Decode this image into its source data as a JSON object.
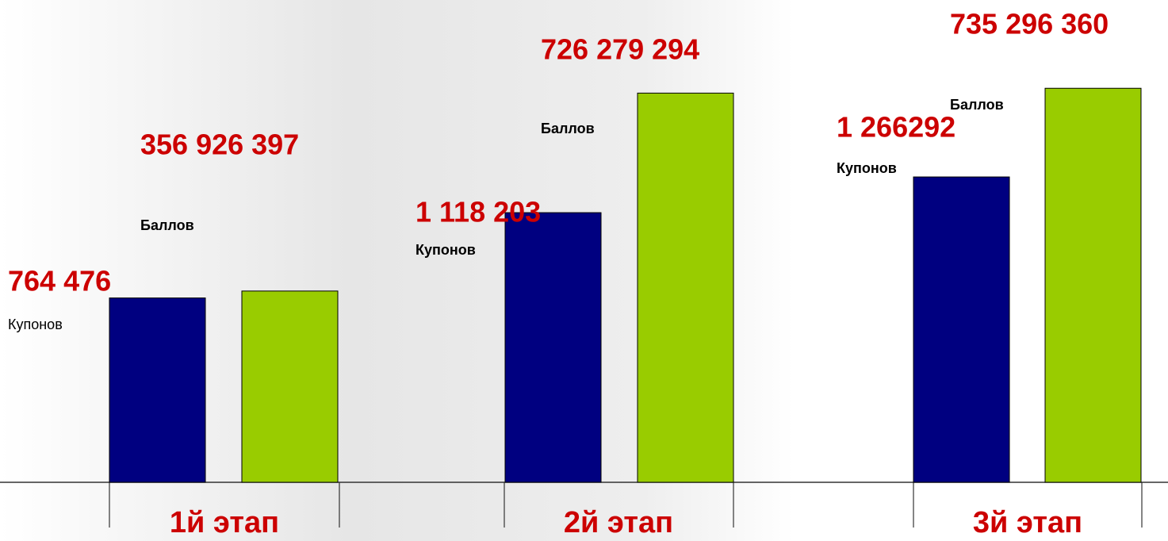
{
  "chart_data": {
    "type": "bar",
    "categories": [
      "1й этап",
      "2й этап",
      "3й этап"
    ],
    "series": [
      {
        "name": "Купонов",
        "color": "#000080",
        "values": [
          764476,
          1118203,
          1266292
        ],
        "value_labels": [
          "764 476",
          "1 118 203",
          "1 266292"
        ]
      },
      {
        "name": "Баллов",
        "color": "#99cc00",
        "axis": "y2",
        "values": [
          356926397,
          726279294,
          735296360
        ],
        "value_labels": [
          "356 926 397",
          "726 279 294",
          "735 296 360"
        ]
      }
    ],
    "ylim": [
      0,
      2000000
    ],
    "y2lim": [
      0,
      900000000
    ],
    "label_color": "#cc0000"
  }
}
